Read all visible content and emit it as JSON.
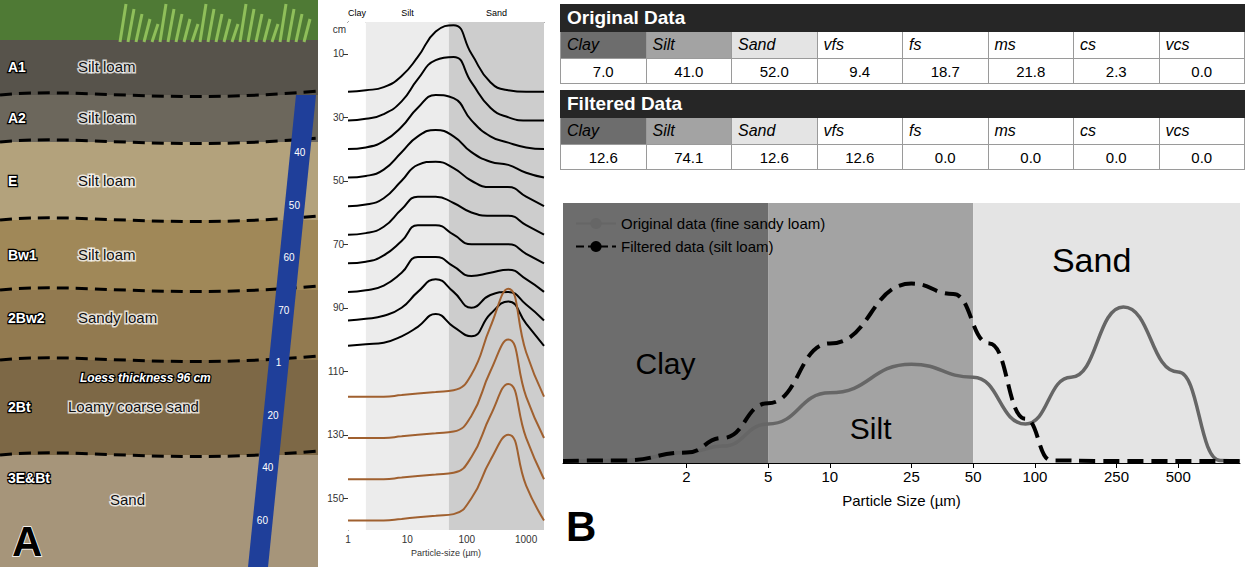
{
  "panel_letters": [
    "A",
    "B"
  ],
  "profile": {
    "horizons": [
      {
        "name": "A1",
        "texture": "Silt loam"
      },
      {
        "name": "A2",
        "texture": "Silt loam"
      },
      {
        "name": "E",
        "texture": "Silt loam"
      },
      {
        "name": "Bw1",
        "texture": "Silt loam"
      },
      {
        "name": "2Bw2",
        "texture": "Sandy loam"
      },
      {
        "name": "2Bt",
        "texture": "Loamy coarse sand"
      },
      {
        "name": "3E&Bt",
        "texture": "Sand"
      }
    ],
    "annotation": "Loess thickness 96 cm",
    "ruler_labels": [
      "40",
      "50",
      "60",
      "70",
      "1",
      "20",
      "40",
      "60"
    ]
  },
  "tables": [
    {
      "title": "Original Data",
      "columns": [
        "Clay",
        "Silt",
        "Sand",
        "vfs",
        "fs",
        "ms",
        "cs",
        "vcs"
      ],
      "values": [
        "7.0",
        "41.0",
        "52.0",
        "9.4",
        "18.7",
        "21.8",
        "2.3",
        "0.0"
      ]
    },
    {
      "title": "Filtered Data",
      "columns": [
        "Clay",
        "Silt",
        "Sand",
        "vfs",
        "fs",
        "ms",
        "cs",
        "vcs"
      ],
      "values": [
        "12.6",
        "74.1",
        "12.6",
        "12.6",
        "0.0",
        "0.0",
        "0.0",
        "0.0"
      ]
    }
  ],
  "chart_data": [
    {
      "type": "line",
      "x_label": "Particle-size (µm)",
      "y_label": "cm",
      "log": "x",
      "grid": true,
      "xlim": [
        1,
        2000
      ],
      "xticks": [
        1,
        10,
        100,
        1000
      ],
      "ylim": [
        0,
        160
      ],
      "yticks": [
        10,
        30,
        50,
        70,
        90,
        110,
        130,
        150
      ],
      "bands": [
        {
          "label": "Clay",
          "from": 1,
          "to": 2,
          "color": "#ffffff"
        },
        {
          "label": "Silt",
          "from": 2,
          "to": 50,
          "color": "#ececec"
        },
        {
          "label": "Sand",
          "from": 50,
          "to": 2000,
          "color": "#cdcdcd"
        }
      ],
      "x": [
        1,
        2,
        4,
        8,
        15,
        30,
        60,
        120,
        250,
        500,
        1000,
        2000
      ],
      "series": [
        {
          "color": "#000000",
          "values": [
            22,
            21.5,
            20.5,
            17,
            11,
            3,
            1,
            10,
            19,
            21.5,
            22,
            22
          ]
        },
        {
          "color": "#000000",
          "values": [
            31,
            30.5,
            29,
            25,
            18,
            12,
            11,
            19,
            27,
            30,
            31,
            31
          ]
        },
        {
          "color": "#000000",
          "values": [
            40,
            39.5,
            37.5,
            33,
            27,
            23,
            24,
            31,
            36,
            38,
            39.5,
            40
          ]
        },
        {
          "color": "#000000",
          "values": [
            49,
            48.5,
            46.5,
            41,
            36,
            34,
            36,
            41,
            44,
            45,
            47.5,
            49
          ]
        },
        {
          "color": "#000000",
          "values": [
            58,
            57.5,
            55.5,
            50,
            45,
            44,
            46,
            50,
            52,
            52,
            55,
            58
          ]
        },
        {
          "color": "#000000",
          "values": [
            67,
            66.5,
            64.5,
            59,
            55,
            55,
            57,
            60,
            61,
            61,
            64,
            67
          ]
        },
        {
          "color": "#000000",
          "values": [
            76,
            75.5,
            73.5,
            69,
            64,
            64,
            67,
            70,
            70,
            70,
            73,
            76
          ]
        },
        {
          "color": "#000000",
          "values": [
            85,
            84.5,
            83,
            79,
            74,
            74,
            77,
            80,
            79,
            78,
            81,
            85
          ]
        },
        {
          "color": "#000000",
          "values": [
            94,
            93.5,
            92.5,
            90,
            85,
            81,
            85,
            90,
            86,
            85,
            89,
            94
          ]
        },
        {
          "color": "#000000",
          "values": [
            102,
            101.5,
            101,
            99,
            96,
            92,
            96,
            99,
            92,
            88,
            95,
            102
          ]
        },
        {
          "color": "#a0602f",
          "values": [
            118,
            118,
            118,
            117.5,
            117,
            116.5,
            116,
            111,
            96,
            84,
            104,
            118
          ]
        },
        {
          "color": "#a0602f",
          "values": [
            131,
            131,
            131,
            130.5,
            130,
            129.5,
            129,
            124,
            110,
            100,
            118,
            131
          ]
        },
        {
          "color": "#a0602f",
          "values": [
            144,
            144,
            144,
            143.5,
            143,
            142.5,
            142,
            137,
            124,
            114,
            131,
            144
          ]
        },
        {
          "color": "#a0602f",
          "values": [
            157,
            157,
            157,
            156.5,
            156,
            155.5,
            155,
            150,
            138,
            130,
            146,
            157
          ]
        }
      ]
    },
    {
      "type": "line",
      "x_label": "Particle Size (µm)",
      "log": "x",
      "xlim": [
        0.5,
        1000
      ],
      "xticks": [
        2,
        5,
        10,
        25,
        50,
        100,
        250,
        500
      ],
      "ylim": [
        0,
        100
      ],
      "tick_labels": "x",
      "legend": "upper left",
      "bands": [
        {
          "label": "Clay",
          "from": 0.5,
          "to": 5,
          "color": "#6d6d6d"
        },
        {
          "label": "Silt",
          "from": 5,
          "to": 50,
          "color": "#a3a3a3"
        },
        {
          "label": "Sand",
          "from": 50,
          "to": 1000,
          "color": "#e4e4e4"
        }
      ],
      "series": [
        {
          "name": "Original data (fine sandy loam)",
          "color": "#666666",
          "line_style": "solid",
          "x": [
            0.5,
            1,
            2,
            3,
            5,
            10,
            25,
            50,
            90,
            150,
            270,
            500,
            800,
            1000
          ],
          "values": [
            0.8,
            1,
            4,
            6.5,
            15,
            27,
            38,
            33,
            15,
            33,
            60,
            35,
            1,
            0.8
          ]
        },
        {
          "name": "Filtered data (silt loam)",
          "color": "#000000",
          "line_style": "dashed",
          "x": [
            0.5,
            1,
            2,
            3,
            5,
            10,
            25,
            40,
            60,
            90,
            120,
            200,
            1000
          ],
          "values": [
            0.8,
            1,
            4,
            9.6,
            23,
            46,
            69,
            65,
            46,
            17,
            1,
            0.8,
            0.8
          ]
        }
      ]
    }
  ]
}
